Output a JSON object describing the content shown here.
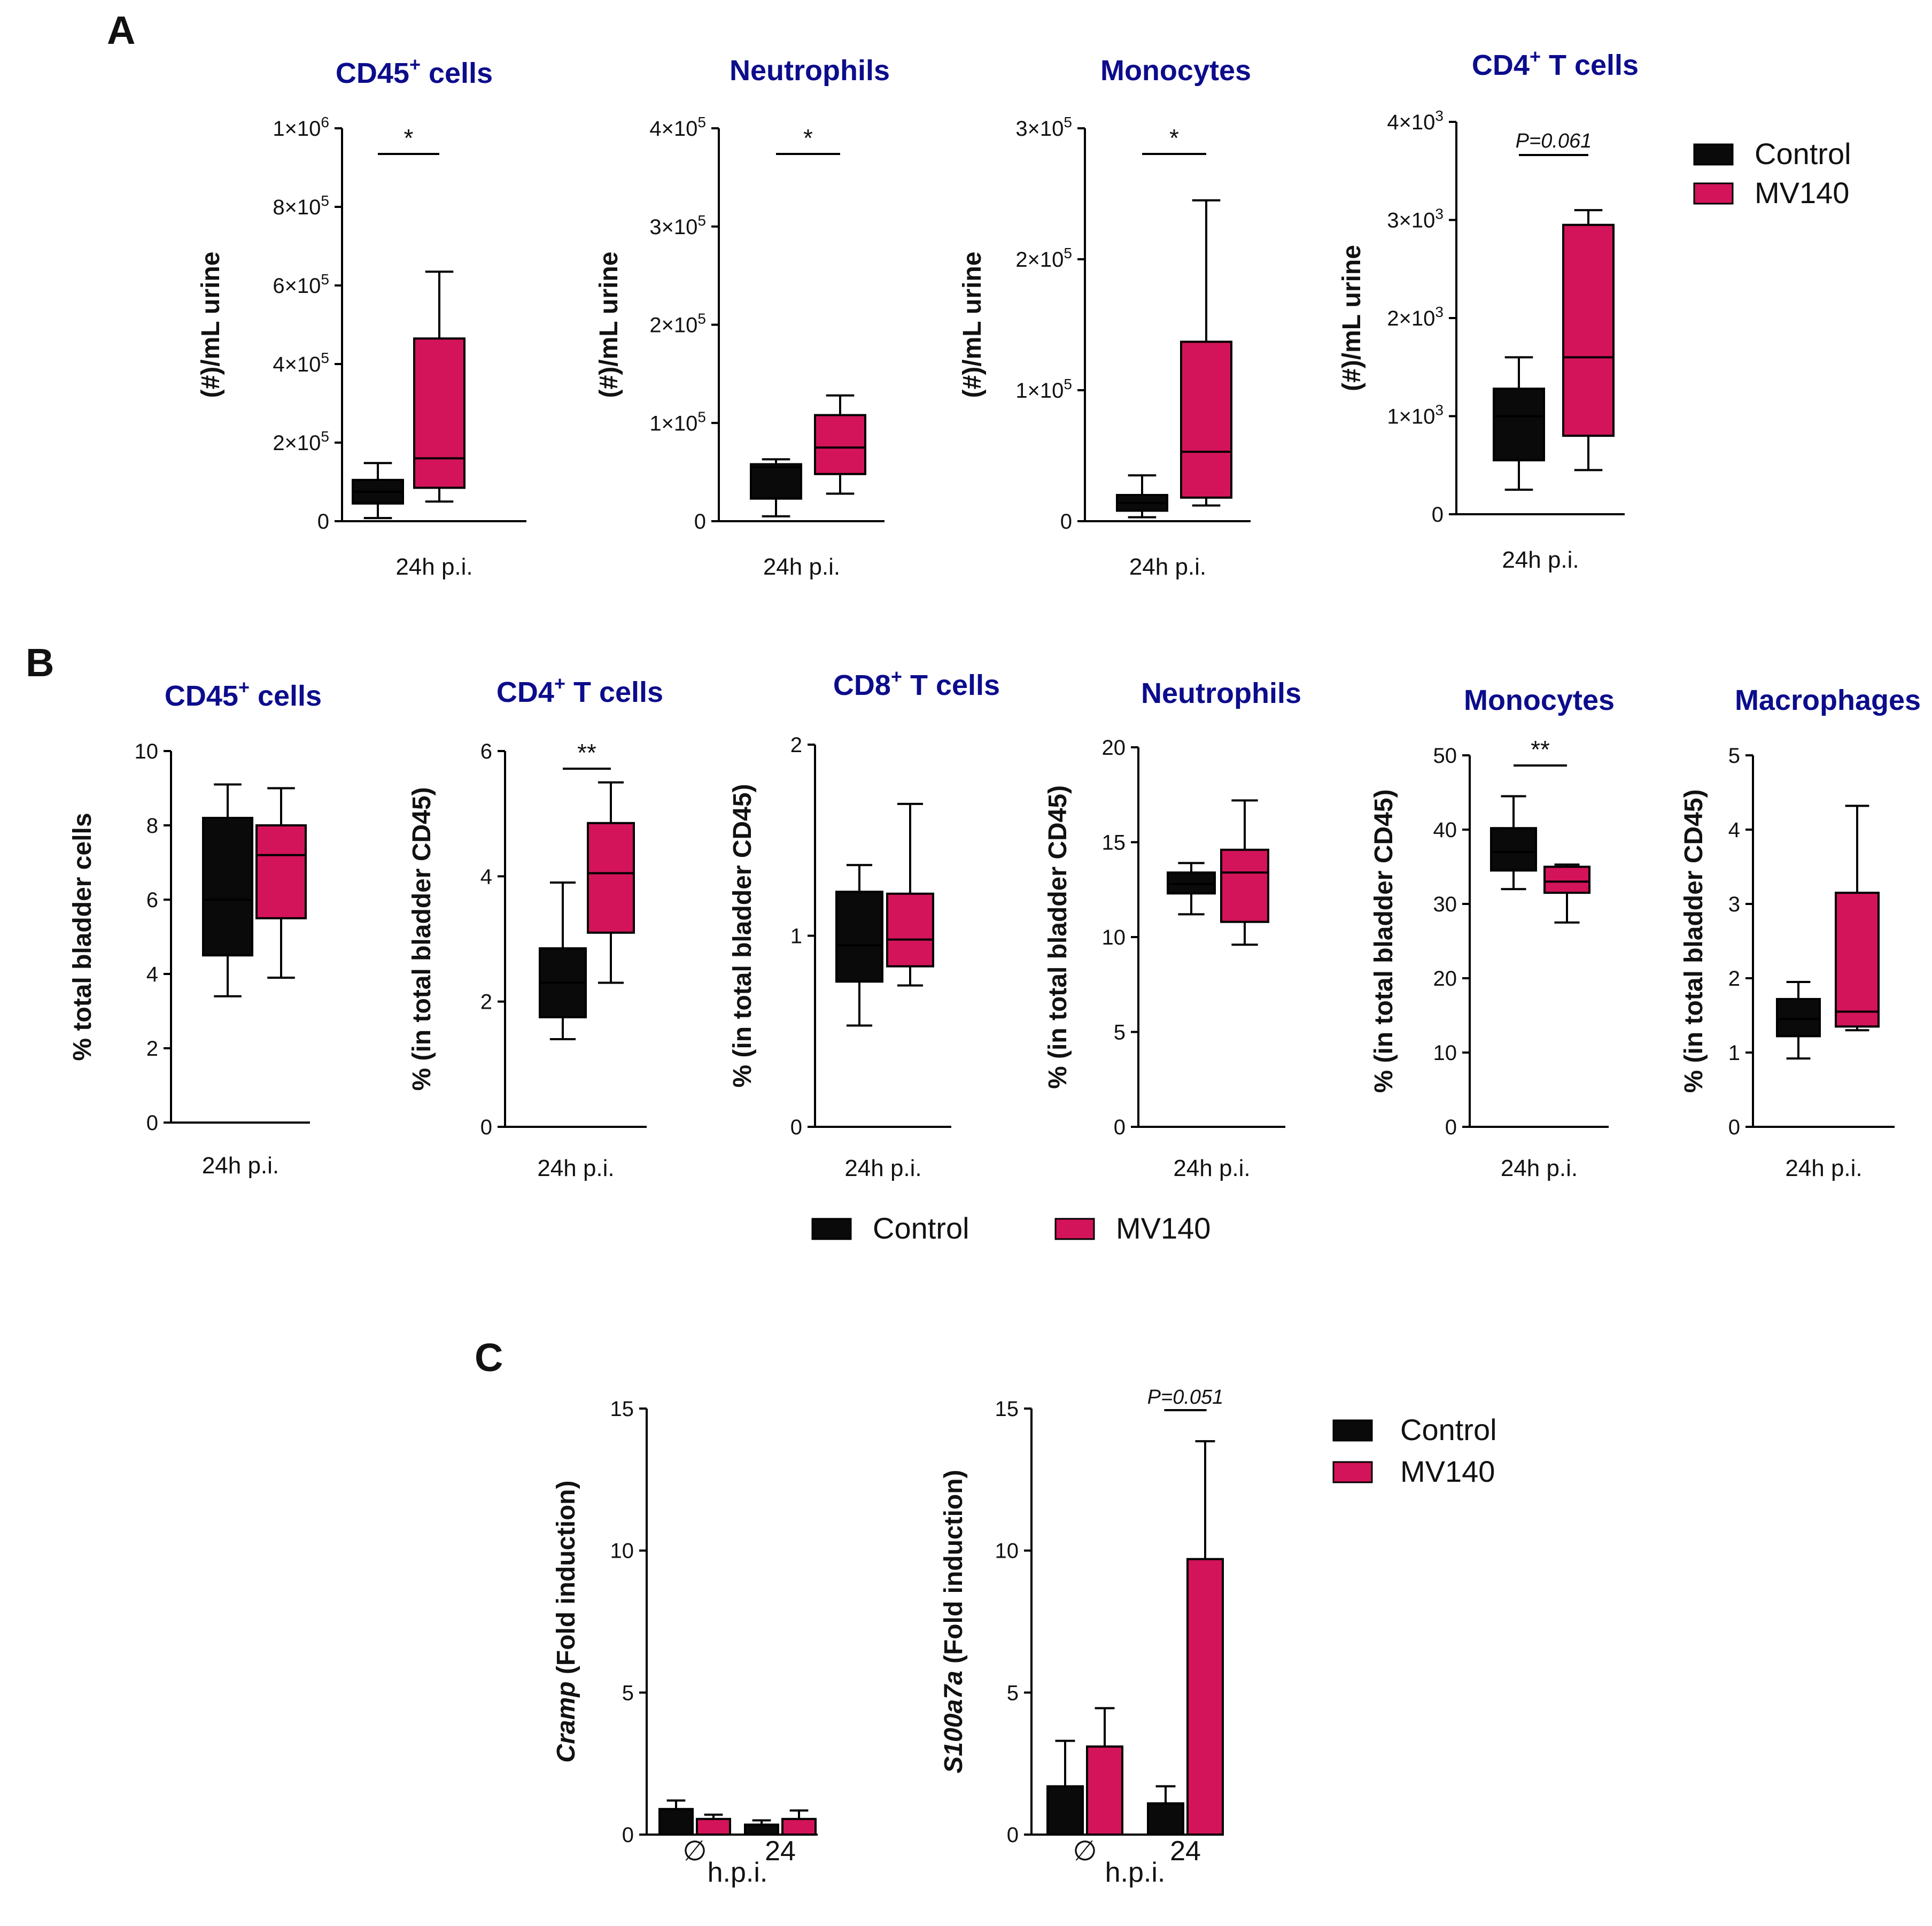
{
  "panel_labels": [
    "A",
    "B",
    "C"
  ],
  "legend": {
    "control_label": "Control",
    "mv140_label": "MV140",
    "colors": {
      "control": "#0a0a0a",
      "mv140": "#d4145a"
    }
  },
  "chart_data": [
    {
      "panel": "A",
      "type": "box",
      "title": "CD45",
      "title_sup": "+",
      "title_suffix": " cells",
      "ylabel": "(#)/mL urine",
      "xlabel": "24h p.i.",
      "ylim": [
        0,
        1000000
      ],
      "yticks": [
        0,
        200000,
        400000,
        600000,
        800000,
        1000000
      ],
      "ytick_labels": [
        [
          "0",
          ""
        ],
        [
          "2×10",
          "5"
        ],
        [
          "4×10",
          "5"
        ],
        [
          "6×10",
          "5"
        ],
        [
          "8×10",
          "5"
        ],
        [
          "1×10",
          "6"
        ]
      ],
      "series": [
        {
          "name": "Control",
          "min": 8000,
          "q1": 45000,
          "median": 75000,
          "q3": 105000,
          "max": 148000
        },
        {
          "name": "MV140",
          "min": 50000,
          "q1": 85000,
          "median": 160000,
          "q3": 465000,
          "max": 635000
        }
      ],
      "annotation": "*"
    },
    {
      "panel": "A",
      "type": "box",
      "title": "Neutrophils",
      "title_sup": "",
      "title_suffix": "",
      "ylabel": "(#)/mL urine",
      "xlabel": "24h p.i.",
      "ylim": [
        0,
        400000
      ],
      "yticks": [
        0,
        100000,
        200000,
        300000,
        400000
      ],
      "ytick_labels": [
        [
          "0",
          ""
        ],
        [
          "1×10",
          "5"
        ],
        [
          "2×10",
          "5"
        ],
        [
          "3×10",
          "5"
        ],
        [
          "4×10",
          "5"
        ]
      ],
      "series": [
        {
          "name": "Control",
          "min": 5000,
          "q1": 23000,
          "median": 55000,
          "q3": 58000,
          "max": 63000
        },
        {
          "name": "MV140",
          "min": 28000,
          "q1": 48000,
          "median": 75000,
          "q3": 108000,
          "max": 128000
        }
      ],
      "annotation": "*"
    },
    {
      "panel": "A",
      "type": "box",
      "title": "Monocytes",
      "title_sup": "",
      "title_suffix": "",
      "ylabel": "(#)/mL urine",
      "xlabel": "24h p.i.",
      "ylim": [
        0,
        300000
      ],
      "yticks": [
        0,
        100000,
        200000,
        300000
      ],
      "ytick_labels": [
        [
          "0",
          ""
        ],
        [
          "1×10",
          "5"
        ],
        [
          "2×10",
          "5"
        ],
        [
          "3×10",
          "5"
        ]
      ],
      "series": [
        {
          "name": "Control",
          "min": 3000,
          "q1": 8000,
          "median": 14000,
          "q3": 20000,
          "max": 35000
        },
        {
          "name": "MV140",
          "min": 12000,
          "q1": 18000,
          "median": 53000,
          "q3": 137000,
          "max": 245000
        }
      ],
      "annotation": "*"
    },
    {
      "panel": "A",
      "type": "box",
      "title": "CD4",
      "title_sup": "+",
      "title_suffix": " T cells",
      "ylabel": "(#)/mL urine",
      "xlabel": "24h p.i.",
      "ylim": [
        0,
        4000
      ],
      "yticks": [
        0,
        1000,
        2000,
        3000,
        4000
      ],
      "ytick_labels": [
        [
          "0",
          ""
        ],
        [
          "1×10",
          "3"
        ],
        [
          "2×10",
          "3"
        ],
        [
          "3×10",
          "3"
        ],
        [
          "4×10",
          "3"
        ]
      ],
      "series": [
        {
          "name": "Control",
          "min": 250,
          "q1": 550,
          "median": 1000,
          "q3": 1280,
          "max": 1600
        },
        {
          "name": "MV140",
          "min": 450,
          "q1": 800,
          "median": 1600,
          "q3": 2950,
          "max": 3100
        }
      ],
      "annotation": "P=0.061"
    },
    {
      "panel": "B",
      "type": "box",
      "title": "CD45",
      "title_sup": "+",
      "title_suffix": " cells",
      "ylabel": "% total bladder cells",
      "xlabel": "24h p.i.",
      "ylim": [
        0,
        10
      ],
      "yticks": [
        0,
        2,
        4,
        6,
        8,
        10
      ],
      "ytick_labels": [
        [
          "0",
          ""
        ],
        [
          "2",
          ""
        ],
        [
          "4",
          ""
        ],
        [
          "6",
          ""
        ],
        [
          "8",
          ""
        ],
        [
          "10",
          ""
        ]
      ],
      "series": [
        {
          "name": "Control",
          "min": 3.4,
          "q1": 4.5,
          "median": 6.0,
          "q3": 8.2,
          "max": 9.1
        },
        {
          "name": "MV140",
          "min": 3.9,
          "q1": 5.5,
          "median": 7.2,
          "q3": 8.0,
          "max": 9.0
        }
      ],
      "annotation": ""
    },
    {
      "panel": "B",
      "type": "box",
      "title": "CD4",
      "title_sup": "+",
      "title_suffix": " T cells",
      "ylabel": "% (in total bladder CD45)",
      "xlabel": "24h p.i.",
      "ylim": [
        0,
        6
      ],
      "yticks": [
        0,
        2,
        4,
        6
      ],
      "ytick_labels": [
        [
          "0",
          ""
        ],
        [
          "2",
          ""
        ],
        [
          "4",
          ""
        ],
        [
          "6",
          ""
        ]
      ],
      "series": [
        {
          "name": "Control",
          "min": 1.4,
          "q1": 1.75,
          "median": 2.3,
          "q3": 2.85,
          "max": 3.9
        },
        {
          "name": "MV140",
          "min": 2.3,
          "q1": 3.1,
          "median": 4.05,
          "q3": 4.85,
          "max": 5.5
        }
      ],
      "annotation": "**"
    },
    {
      "panel": "B",
      "type": "box",
      "title": "CD8",
      "title_sup": "+",
      "title_suffix": " T cells",
      "ylabel": "% (in total bladder CD45)",
      "xlabel": "24h p.i.",
      "ylim": [
        0,
        2
      ],
      "yticks": [
        0,
        1,
        2
      ],
      "ytick_labels": [
        [
          "0",
          ""
        ],
        [
          "1",
          ""
        ],
        [
          "2",
          ""
        ]
      ],
      "series": [
        {
          "name": "Control",
          "min": 0.53,
          "q1": 0.76,
          "median": 0.95,
          "q3": 1.23,
          "max": 1.37
        },
        {
          "name": "MV140",
          "min": 0.74,
          "q1": 0.84,
          "median": 0.98,
          "q3": 1.22,
          "max": 1.69
        }
      ],
      "annotation": ""
    },
    {
      "panel": "B",
      "type": "box",
      "title": "Neutrophils",
      "title_sup": "",
      "title_suffix": "",
      "ylabel": "% (in total bladder CD45)",
      "xlabel": "24h p.i.",
      "ylim": [
        0,
        20
      ],
      "yticks": [
        0,
        5,
        10,
        15,
        20
      ],
      "ytick_labels": [
        [
          "0",
          ""
        ],
        [
          "5",
          ""
        ],
        [
          "10",
          ""
        ],
        [
          "15",
          ""
        ],
        [
          "20",
          ""
        ]
      ],
      "series": [
        {
          "name": "Control",
          "min": 11.2,
          "q1": 12.3,
          "median": 12.8,
          "q3": 13.4,
          "max": 13.9
        },
        {
          "name": "MV140",
          "min": 9.6,
          "q1": 10.8,
          "median": 13.4,
          "q3": 14.6,
          "max": 17.2
        }
      ],
      "annotation": ""
    },
    {
      "panel": "B",
      "type": "box",
      "title": "Monocytes",
      "title_sup": "",
      "title_suffix": "",
      "ylabel": "% (in total bladder CD45)",
      "xlabel": "24h p.i.",
      "ylim": [
        0,
        50
      ],
      "yticks": [
        0,
        10,
        20,
        30,
        40,
        50
      ],
      "ytick_labels": [
        [
          "0",
          ""
        ],
        [
          "10",
          ""
        ],
        [
          "20",
          ""
        ],
        [
          "30",
          ""
        ],
        [
          "40",
          ""
        ],
        [
          "50",
          ""
        ]
      ],
      "series": [
        {
          "name": "Control",
          "min": 32,
          "q1": 34.5,
          "median": 37,
          "q3": 40.2,
          "max": 44.5
        },
        {
          "name": "MV140",
          "min": 27.5,
          "q1": 31.5,
          "median": 33,
          "q3": 35,
          "max": 35.3
        }
      ],
      "annotation": "**"
    },
    {
      "panel": "B",
      "type": "box",
      "title": "Macrophages",
      "title_sup": "",
      "title_suffix": "",
      "ylabel": "% (in total bladder CD45)",
      "xlabel": "24h p.i.",
      "ylim": [
        0,
        5
      ],
      "yticks": [
        0,
        1,
        2,
        3,
        4,
        5
      ],
      "ytick_labels": [
        [
          "0",
          ""
        ],
        [
          "1",
          ""
        ],
        [
          "2",
          ""
        ],
        [
          "3",
          ""
        ],
        [
          "4",
          ""
        ],
        [
          "5",
          ""
        ]
      ],
      "series": [
        {
          "name": "Control",
          "min": 0.92,
          "q1": 1.22,
          "median": 1.45,
          "q3": 1.72,
          "max": 1.95
        },
        {
          "name": "MV140",
          "min": 1.3,
          "q1": 1.35,
          "median": 1.55,
          "q3": 3.15,
          "max": 4.32
        }
      ],
      "annotation": ""
    },
    {
      "panel": "C",
      "type": "bar",
      "gene": "Cramp",
      "ylabel_suffix": " (Fold induction)",
      "xlabel": "h.p.i.",
      "categories": [
        "∅",
        "24"
      ],
      "ylim": [
        0,
        15
      ],
      "yticks": [
        0,
        5,
        10,
        15
      ],
      "ytick_labels": [
        [
          "0",
          ""
        ],
        [
          "5",
          ""
        ],
        [
          "10",
          ""
        ],
        [
          "15",
          ""
        ]
      ],
      "series": [
        {
          "name": "Control",
          "values": [
            0.9,
            0.35
          ],
          "errors": [
            0.3,
            0.15
          ]
        },
        {
          "name": "MV140",
          "values": [
            0.55,
            0.55
          ],
          "errors": [
            0.15,
            0.3
          ]
        }
      ],
      "annotation": ""
    },
    {
      "panel": "C",
      "type": "bar",
      "gene": "S100a7a",
      "ylabel_suffix": " (Fold induction)",
      "xlabel": "h.p.i.",
      "categories": [
        "∅",
        "24"
      ],
      "ylim": [
        0,
        15
      ],
      "yticks": [
        0,
        5,
        10,
        15
      ],
      "ytick_labels": [
        [
          "0",
          ""
        ],
        [
          "5",
          ""
        ],
        [
          "10",
          ""
        ],
        [
          "15",
          ""
        ]
      ],
      "series": [
        {
          "name": "Control",
          "values": [
            1.7,
            1.1
          ],
          "errors": [
            1.6,
            0.6
          ]
        },
        {
          "name": "MV140",
          "values": [
            3.1,
            9.7
          ],
          "errors": [
            1.35,
            4.15
          ]
        }
      ],
      "annotation": "P=0.051"
    }
  ]
}
